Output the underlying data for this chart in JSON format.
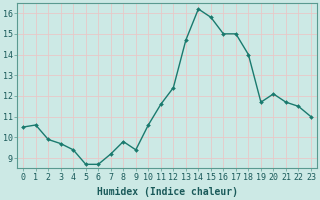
{
  "x": [
    0,
    1,
    2,
    3,
    4,
    5,
    6,
    7,
    8,
    9,
    10,
    11,
    12,
    13,
    14,
    15,
    16,
    17,
    18,
    19,
    20,
    21,
    22,
    23
  ],
  "y": [
    10.5,
    10.6,
    9.9,
    9.7,
    9.4,
    8.7,
    8.7,
    9.2,
    9.8,
    9.4,
    10.6,
    11.6,
    12.4,
    14.7,
    16.2,
    15.8,
    15.0,
    15.0,
    14.0,
    11.7,
    12.1,
    11.7,
    11.5,
    11.0
  ],
  "line_color": "#1a7a6e",
  "marker": "D",
  "marker_size": 2.0,
  "bg_color": "#cce9e5",
  "grid_major_color": "#e8c8c8",
  "xlabel": "Humidex (Indice chaleur)",
  "ylim": [
    8.5,
    16.5
  ],
  "xlim": [
    -0.5,
    23.5
  ],
  "yticks": [
    9,
    10,
    11,
    12,
    13,
    14,
    15,
    16
  ],
  "xtick_labels": [
    "0",
    "1",
    "2",
    "3",
    "4",
    "5",
    "6",
    "7",
    "8",
    "9",
    "10",
    "11",
    "12",
    "13",
    "14",
    "15",
    "16",
    "17",
    "18",
    "19",
    "20",
    "21",
    "22",
    "23"
  ],
  "axis_fontsize": 7,
  "tick_fontsize": 6,
  "xlabel_fontsize": 7
}
